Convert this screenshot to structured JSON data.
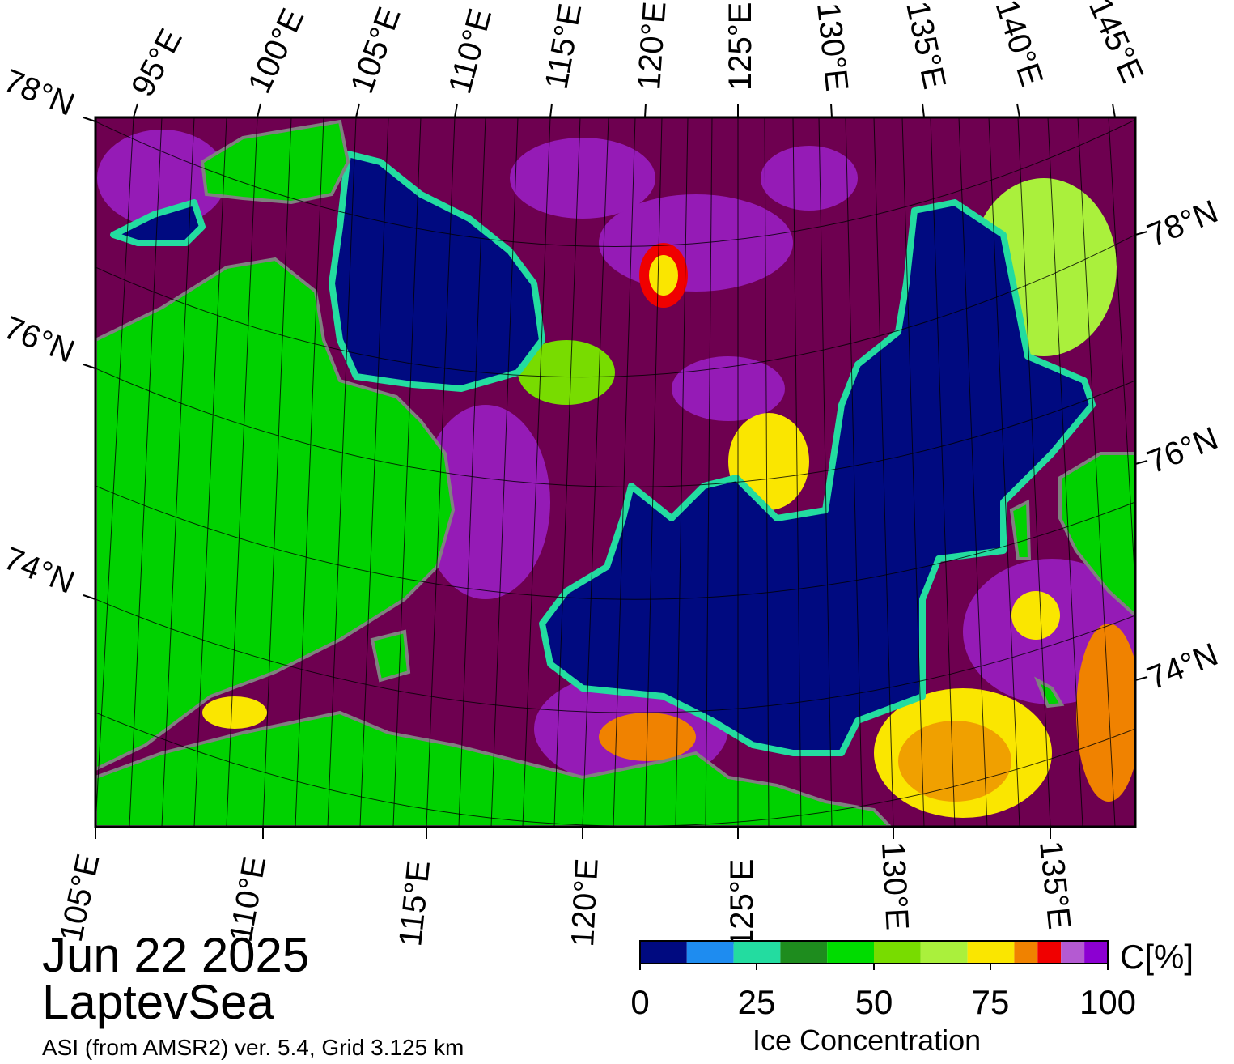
{
  "map": {
    "date": "Jun 22 2025",
    "region": "LaptevSea",
    "source": "ASI (from AMSR2) ver. 5.4,  Grid 3.125 km",
    "top_lon_labels": [
      "95°E",
      "100°E",
      "105°E",
      "110°E",
      "115°E",
      "120°E",
      "125°E",
      "130°E",
      "135°E",
      "140°E",
      "145°E"
    ],
    "bottom_lon_labels": [
      "105°E",
      "110°E",
      "115°E",
      "120°E",
      "125°E",
      "130°E",
      "135°E"
    ],
    "left_lat_labels": [
      "78°N",
      "76°N",
      "74°N"
    ],
    "right_lat_labels": [
      "78°N",
      "76°N",
      "74°N"
    ],
    "colors": {
      "water": "#000a80",
      "land": "#00d200",
      "coast_ice": "#808080",
      "ice_high": "#6e0050"
    }
  },
  "colorbar": {
    "label": "C[%]",
    "title": "Ice Concentration",
    "ticks": [
      "0",
      "25",
      "50",
      "75",
      "100"
    ],
    "range": [
      0,
      100
    ],
    "bins": [
      {
        "from": 0,
        "to": 10,
        "color": "#000a80"
      },
      {
        "from": 10,
        "to": 20,
        "color": "#1e8cf0"
      },
      {
        "from": 20,
        "to": 30,
        "color": "#23dca0"
      },
      {
        "from": 30,
        "to": 40,
        "color": "#1e8c1e"
      },
      {
        "from": 40,
        "to": 50,
        "color": "#00dc00"
      },
      {
        "from": 50,
        "to": 60,
        "color": "#78dc00"
      },
      {
        "from": 60,
        "to": 70,
        "color": "#aaf03c"
      },
      {
        "from": 70,
        "to": 80,
        "color": "#fae600"
      },
      {
        "from": 80,
        "to": 85,
        "color": "#f08200"
      },
      {
        "from": 85,
        "to": 90,
        "color": "#f00000"
      },
      {
        "from": 90,
        "to": 95,
        "color": "#b45ad2"
      },
      {
        "from": 95,
        "to": 100,
        "color": "#8c00d2"
      }
    ]
  }
}
